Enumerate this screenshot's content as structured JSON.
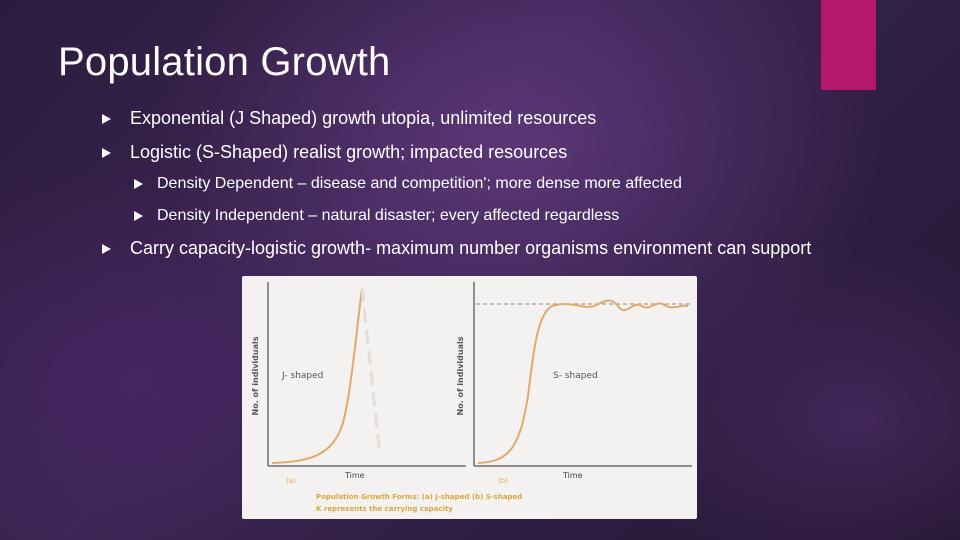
{
  "slide": {
    "title": "Population Growth",
    "accent_color": "#b5186a"
  },
  "bullets": [
    {
      "level": 1,
      "text": "Exponential (J Shaped) growth utopia, unlimited resources"
    },
    {
      "level": 1,
      "text": "Logistic (S-Shaped) realist growth; impacted resources"
    },
    {
      "level": 2,
      "text": "Density Dependent – disease and competition'; more dense more affected"
    },
    {
      "level": 2,
      "text": "Density Independent – natural disaster; every affected regardless"
    },
    {
      "level": 1,
      "text": "Carry capacity-logistic growth-  maximum number  organisms environment can support"
    }
  ],
  "figure": {
    "panel_a": {
      "ylabel": "No. of individuals",
      "curve_label": "J- shaped",
      "xlabel": "Time",
      "tag": "(a)"
    },
    "panel_b": {
      "ylabel": "No. of individuals",
      "curve_label": "S- shaped",
      "xlabel": "Time",
      "tag": "(b)"
    },
    "caption_line1": "Population Growth Forms: (a) J-shaped (b) S-shaped",
    "caption_line2": "K represents the carrying capacity",
    "curve_color": "#e3a96a",
    "caption_color": "#d9a640"
  }
}
